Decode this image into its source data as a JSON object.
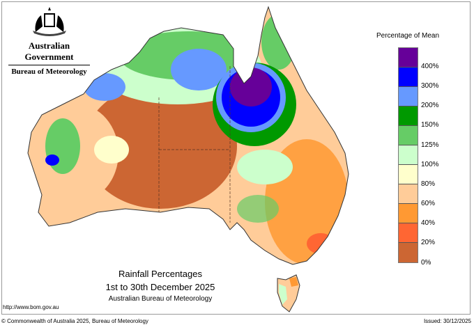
{
  "header": {
    "government": "Australian Government",
    "bureau": "Bureau of Meteorology"
  },
  "legend": {
    "title": "Percentage of Mean",
    "labels": [
      "400%",
      "300%",
      "200%",
      "150%",
      "125%",
      "100%",
      "80%",
      "60%",
      "40%",
      "20%",
      "0%"
    ],
    "colors": [
      "#660099",
      "#0000ff",
      "#6699ff",
      "#009900",
      "#66cc66",
      "#ccffcc",
      "#ffffcc",
      "#ffcc99",
      "#ff9933",
      "#ff6633",
      "#cc6633"
    ]
  },
  "map_title": {
    "line1": "Rainfall Percentages",
    "line2": "1st to 30th December 2025",
    "line3": "Australian Bureau of Meteorology"
  },
  "footer": {
    "url": "http://www.bom.gov.au",
    "copyright": "© Commonwealth of Australia 2025, Bureau of Meteorology",
    "issued": "Issued: 30/12/2025"
  }
}
